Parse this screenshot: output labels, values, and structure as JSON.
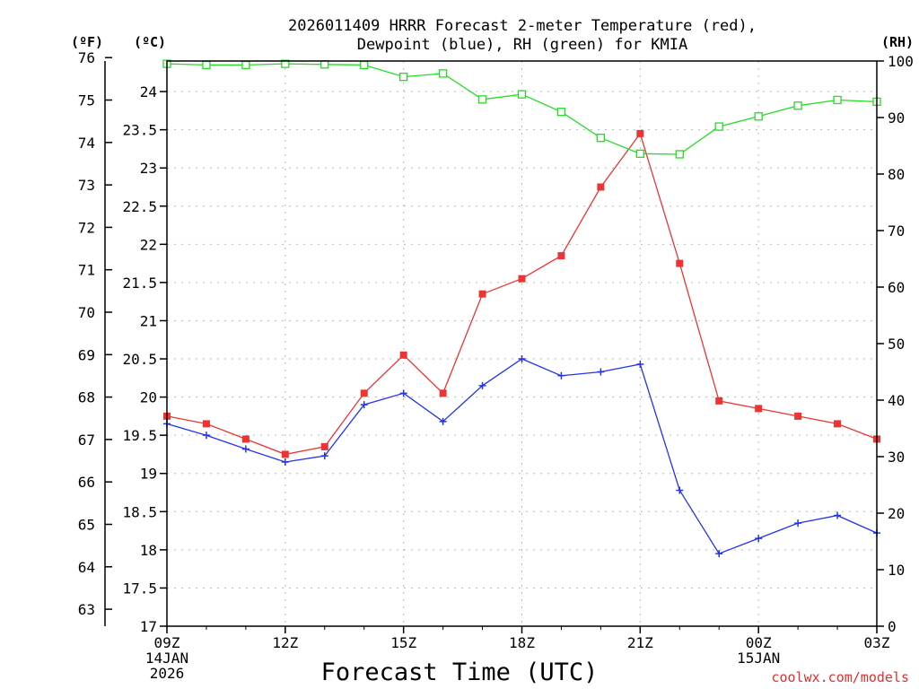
{
  "chart_data": {
    "type": "line",
    "title_line1": "2026011409 HRRR Forecast 2-meter Temperature (red),",
    "title_line2": "Dewpoint (blue), RH (green) for KMIA",
    "xlabel": "Forecast Time (UTC)",
    "credit": "coolwx.com/models",
    "unit_f": "(ºF)",
    "unit_c": "(ºC)",
    "unit_rh": "(RH)",
    "x_hours": [
      0,
      1,
      2,
      3,
      4,
      5,
      6,
      7,
      8,
      9,
      10,
      11,
      12,
      13,
      14,
      15,
      16,
      17,
      18
    ],
    "x_ticks": [
      {
        "hour": 0,
        "lines": [
          "09Z",
          "14JAN",
          "2026"
        ]
      },
      {
        "hour": 3,
        "lines": [
          "12Z"
        ]
      },
      {
        "hour": 6,
        "lines": [
          "15Z"
        ]
      },
      {
        "hour": 9,
        "lines": [
          "18Z"
        ]
      },
      {
        "hour": 12,
        "lines": [
          "21Z"
        ]
      },
      {
        "hour": 15,
        "lines": [
          "00Z",
          "15JAN"
        ]
      },
      {
        "hour": 18,
        "lines": [
          "03Z"
        ]
      }
    ],
    "axes": {
      "celsius": {
        "min": 17,
        "max": 24.4,
        "ticks": [
          "17",
          "17.5",
          "18",
          "18.5",
          "19",
          "19.5",
          "20",
          "20.5",
          "21",
          "21.5",
          "22",
          "22.5",
          "23",
          "23.5",
          "24"
        ]
      },
      "fahrenheit": {
        "ticks": [
          "63",
          "64",
          "65",
          "66",
          "67",
          "68",
          "69",
          "70",
          "71",
          "72",
          "73",
          "74",
          "75",
          "76"
        ]
      },
      "rh": {
        "min": 0,
        "max": 100,
        "ticks": [
          "0",
          "10",
          "20",
          "30",
          "40",
          "50",
          "60",
          "70",
          "80",
          "90",
          "100"
        ]
      }
    },
    "series": [
      {
        "name": "Temperature",
        "color": "#ee3333",
        "marker": "filled-square",
        "axis": "celsius",
        "values": [
          19.75,
          19.65,
          19.45,
          19.25,
          19.35,
          20.05,
          20.55,
          20.05,
          21.35,
          21.55,
          21.85,
          22.75,
          23.45,
          21.75,
          19.95,
          19.85,
          19.75,
          19.65,
          19.45
        ]
      },
      {
        "name": "Dewpoint",
        "color": "#2233ee",
        "marker": "plus",
        "axis": "celsius",
        "values": [
          19.65,
          19.5,
          19.32,
          19.15,
          19.23,
          19.9,
          20.05,
          19.68,
          20.15,
          20.5,
          20.28,
          20.33,
          20.43,
          18.78,
          17.95,
          18.15,
          18.35,
          18.45,
          18.22
        ]
      },
      {
        "name": "RH",
        "color": "#22dd22",
        "marker": "open-square",
        "axis": "rh",
        "values": [
          99.5,
          99.3,
          99.3,
          99.5,
          99.4,
          99.3,
          97.2,
          97.8,
          93.2,
          94.1,
          91.0,
          86.4,
          83.6,
          83.5,
          88.4,
          90.2,
          92.1,
          93.1,
          92.8
        ]
      }
    ]
  }
}
